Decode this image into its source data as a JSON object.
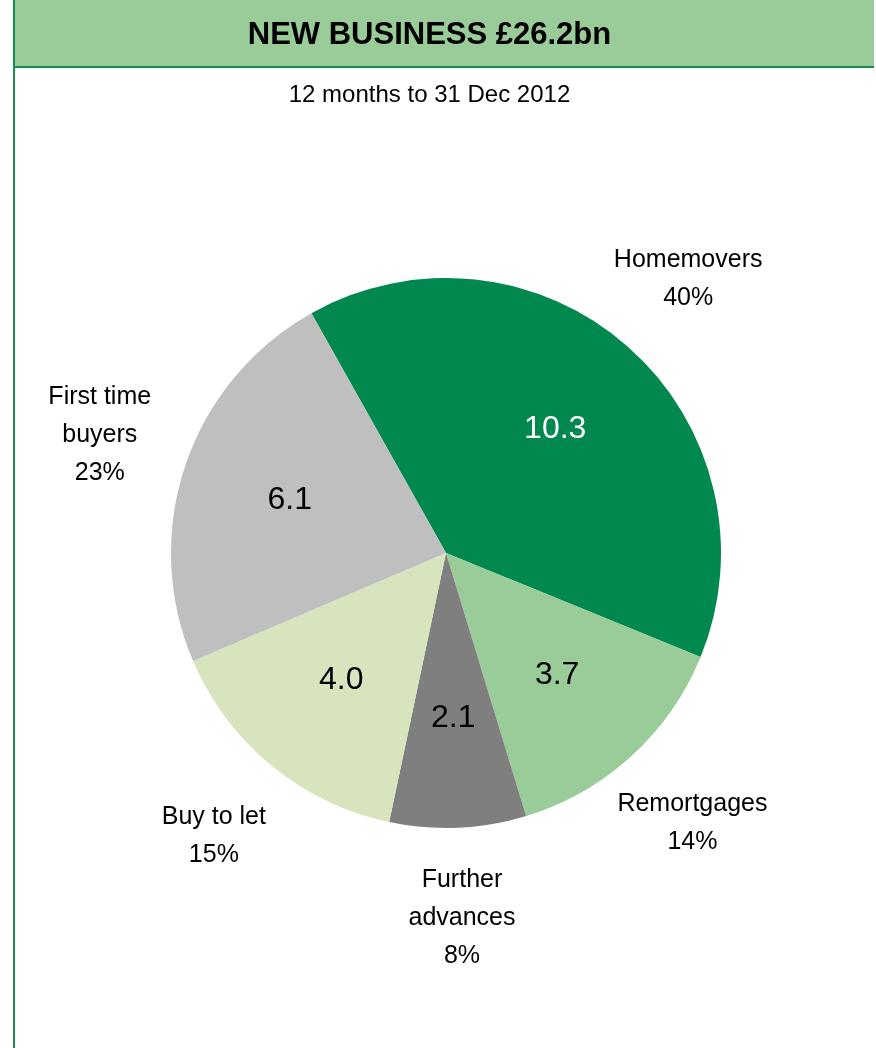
{
  "chart_data": {
    "type": "pie",
    "title": "NEW BUSINESS £26.2bn",
    "subtitle": "12 months to 31 Dec 2012",
    "categories": [
      "Homemovers",
      "Remortgages",
      "Further advances",
      "Buy to let",
      "First time buyers"
    ],
    "values": [
      10.3,
      3.7,
      2.1,
      4.0,
      6.1
    ],
    "value_labels": [
      "10.3",
      "3.7",
      "2.1",
      "4.0",
      "6.1"
    ],
    "colors": [
      "#00884f",
      "#99cc99",
      "#7f7f7f",
      "#d7e4bd",
      "#bfbfbf"
    ],
    "annotations": [
      {
        "text": "40%",
        "x": "Homemovers"
      },
      {
        "text": "14%",
        "x": "Remortgages"
      },
      {
        "text": "8%",
        "x": "Further advances"
      },
      {
        "text": "15%",
        "x": "Buy to let"
      },
      {
        "text": "23%",
        "x": "First time buyers"
      }
    ],
    "legend": false
  }
}
